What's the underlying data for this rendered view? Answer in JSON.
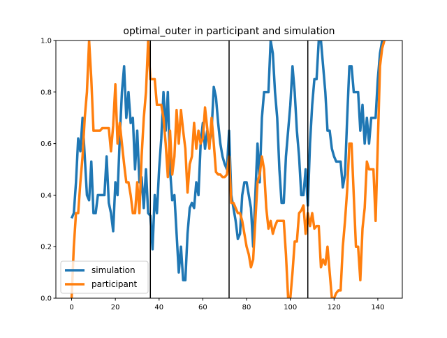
{
  "chart_data": {
    "type": "line",
    "title": "optimal_outer in participant and simulation",
    "x": [
      0,
      1,
      2,
      3,
      4,
      5,
      6,
      7,
      8,
      9,
      10,
      11,
      12,
      13,
      14,
      15,
      16,
      17,
      18,
      19,
      20,
      21,
      22,
      23,
      24,
      25,
      26,
      27,
      28,
      29,
      30,
      31,
      32,
      33,
      34,
      35,
      36,
      37,
      38,
      39,
      40,
      41,
      42,
      43,
      44,
      45,
      46,
      47,
      48,
      49,
      50,
      51,
      52,
      53,
      54,
      55,
      56,
      57,
      58,
      59,
      60,
      61,
      62,
      63,
      64,
      65,
      66,
      67,
      68,
      69,
      70,
      71,
      72,
      73,
      74,
      75,
      76,
      77,
      78,
      79,
      80,
      81,
      82,
      83,
      84,
      85,
      86,
      87,
      88,
      89,
      90,
      91,
      92,
      93,
      94,
      95,
      96,
      97,
      98,
      99,
      100,
      101,
      102,
      103,
      104,
      105,
      106,
      107,
      108,
      109,
      110,
      111,
      112,
      113,
      114,
      115,
      116,
      117,
      118,
      119,
      120,
      121,
      122,
      123,
      124,
      125,
      126,
      127,
      128,
      129,
      130,
      131,
      132,
      133,
      134,
      135,
      136,
      137,
      138,
      139,
      140,
      141,
      142,
      143
    ],
    "series": [
      {
        "name": "simulation",
        "color": "#1f77b4",
        "values": [
          0.31,
          0.33,
          0.45,
          0.62,
          0.57,
          0.7,
          0.55,
          0.4,
          0.38,
          0.53,
          0.33,
          0.33,
          0.4,
          0.4,
          0.4,
          0.4,
          0.55,
          0.37,
          0.33,
          0.26,
          0.45,
          0.4,
          0.62,
          0.8,
          0.9,
          0.7,
          0.8,
          0.68,
          0.7,
          0.5,
          0.65,
          0.45,
          0.47,
          0.35,
          0.5,
          0.33,
          0.32,
          0.19,
          0.4,
          0.33,
          0.5,
          0.62,
          0.8,
          0.65,
          0.8,
          0.5,
          0.38,
          0.4,
          0.25,
          0.1,
          0.2,
          0.07,
          0.07,
          0.25,
          0.35,
          0.37,
          0.35,
          0.45,
          0.4,
          0.6,
          0.68,
          0.58,
          0.65,
          0.6,
          0.65,
          0.82,
          0.78,
          0.68,
          0.6,
          0.55,
          0.52,
          0.5,
          0.65,
          0.4,
          0.35,
          0.3,
          0.23,
          0.25,
          0.4,
          0.45,
          0.45,
          0.4,
          0.35,
          0.2,
          0.4,
          0.6,
          0.45,
          0.7,
          0.8,
          0.8,
          0.8,
          1.0,
          0.95,
          0.8,
          0.7,
          0.5,
          0.37,
          0.37,
          0.55,
          0.65,
          0.75,
          0.9,
          0.8,
          0.65,
          0.55,
          0.4,
          0.4,
          0.5,
          0.36,
          0.6,
          0.75,
          0.85,
          0.85,
          1.0,
          1.0,
          0.9,
          0.8,
          0.65,
          0.65,
          0.58,
          0.55,
          0.53,
          0.53,
          0.53,
          0.43,
          0.48,
          0.7,
          0.9,
          0.9,
          0.8,
          0.8,
          0.8,
          0.65,
          0.75,
          0.6,
          0.7,
          0.6,
          0.7,
          0.7,
          0.7,
          0.85,
          0.95,
          1.0,
          1.0
        ]
      },
      {
        "name": "participant",
        "color": "#ff7f0e",
        "values": [
          0.0,
          0.2,
          0.33,
          0.33,
          0.45,
          0.55,
          0.7,
          0.8,
          1.0,
          0.85,
          0.65,
          0.65,
          0.65,
          0.65,
          0.66,
          0.66,
          0.66,
          0.66,
          0.57,
          0.67,
          0.83,
          0.6,
          0.68,
          0.6,
          0.52,
          0.45,
          0.45,
          0.4,
          0.33,
          0.33,
          0.45,
          0.33,
          0.55,
          0.7,
          0.8,
          1.0,
          0.85,
          0.85,
          0.85,
          0.75,
          0.75,
          0.75,
          0.7,
          0.6,
          0.47,
          0.65,
          0.48,
          0.55,
          0.73,
          0.6,
          0.73,
          0.65,
          0.58,
          0.41,
          0.52,
          0.55,
          0.68,
          0.58,
          0.65,
          0.6,
          0.62,
          0.74,
          0.66,
          0.58,
          0.7,
          0.6,
          0.49,
          0.48,
          0.48,
          0.47,
          0.47,
          0.48,
          0.55,
          0.37,
          0.37,
          0.35,
          0.33,
          0.33,
          0.3,
          0.25,
          0.2,
          0.17,
          0.12,
          0.15,
          0.3,
          0.45,
          0.48,
          0.55,
          0.5,
          0.35,
          0.27,
          0.3,
          0.25,
          0.28,
          0.3,
          0.3,
          0.3,
          0.3,
          0.17,
          0.0,
          0.0,
          0.1,
          0.22,
          0.22,
          0.33,
          0.34,
          0.36,
          0.25,
          0.33,
          0.28,
          0.33,
          0.27,
          0.28,
          0.28,
          0.12,
          0.15,
          0.13,
          0.2,
          0.1,
          0.0,
          0.0,
          0.02,
          0.03,
          0.03,
          0.2,
          0.3,
          0.42,
          0.6,
          0.6,
          0.4,
          0.2,
          0.2,
          0.07,
          0.27,
          0.35,
          0.53,
          0.5,
          0.5,
          0.5,
          0.3,
          0.6,
          0.9,
          0.97,
          1.0
        ]
      }
    ],
    "vlines": [
      36,
      72,
      108
    ],
    "vline_color": "#000000",
    "xlim": [
      -7.2,
      151.2
    ],
    "ylim": [
      0,
      1
    ],
    "xticks": [
      0,
      20,
      40,
      60,
      80,
      100,
      120,
      140
    ],
    "yticks": [
      {
        "value": 0,
        "label": "0.0"
      },
      0.2,
      0.4,
      0.6,
      0.8,
      {
        "value": 1,
        "label": "1.0"
      }
    ],
    "legend": "lower left"
  }
}
